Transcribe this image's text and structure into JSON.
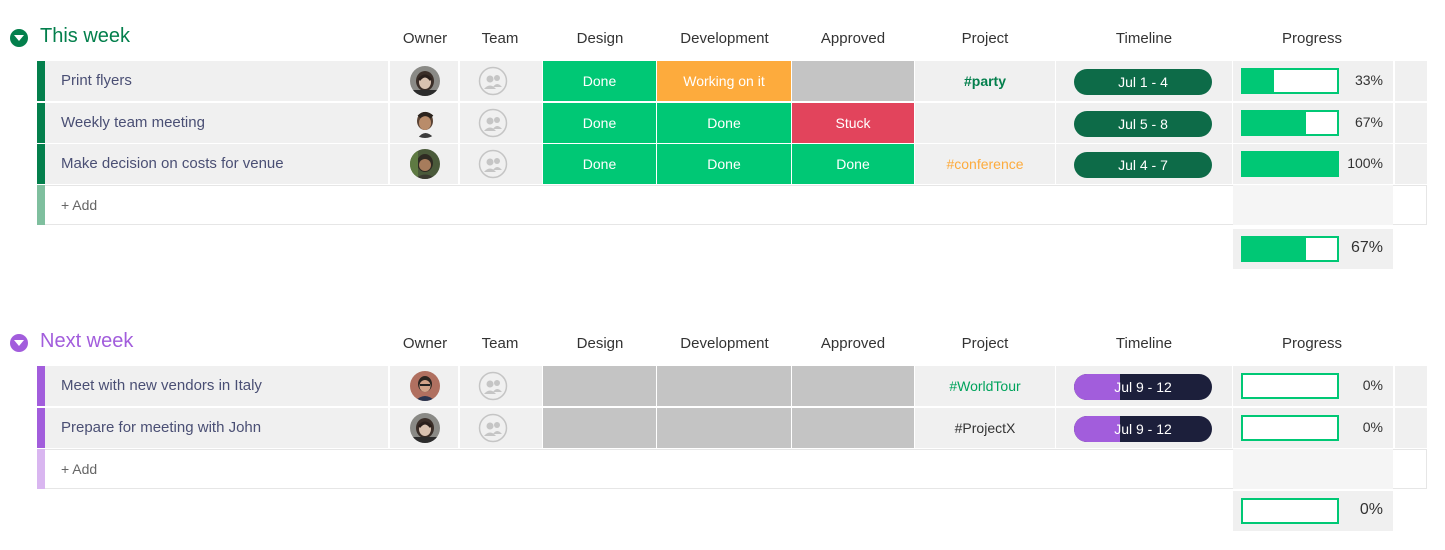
{
  "columns": {
    "owner": "Owner",
    "team": "Team",
    "design": "Design",
    "development": "Development",
    "approved": "Approved",
    "project": "Project",
    "timeline": "Timeline",
    "progress": "Progress"
  },
  "colors": {
    "done": "#00c875",
    "working": "#fdab3d",
    "stuck": "#e2445c",
    "empty": "#c4c4c4",
    "this_week": "#037f4c",
    "next_week": "#a25ddc",
    "timeline_dark": "#0d6b48",
    "timeline_navy": "#1c1f3b"
  },
  "groups": [
    {
      "title": "This week",
      "add_label": "+ Add",
      "summary_progress": "67%",
      "summary_fraction": 0.67,
      "rows": [
        {
          "name": "Print flyers",
          "design": "Done",
          "development": "Working on it",
          "approved": "",
          "project": "#party",
          "timeline": "Jul 1 - 4",
          "progress": "33%",
          "progress_fraction": 0.33
        },
        {
          "name": "Weekly team meeting",
          "design": "Done",
          "development": "Done",
          "approved": "Stuck",
          "project": "",
          "timeline": "Jul 5 - 8",
          "progress": "67%",
          "progress_fraction": 0.67
        },
        {
          "name": "Make decision on costs for venue",
          "design": "Done",
          "development": "Done",
          "approved": "Done",
          "project": "#conference",
          "timeline": "Jul 4 - 7",
          "progress": "100%",
          "progress_fraction": 1.0
        }
      ]
    },
    {
      "title": "Next week",
      "add_label": "+ Add",
      "summary_progress": "0%",
      "summary_fraction": 0,
      "rows": [
        {
          "name": "Meet with new vendors in Italy",
          "design": "",
          "development": "",
          "approved": "",
          "project": "#WorldTour",
          "timeline": "Jul 9 - 12",
          "progress": "0%",
          "progress_fraction": 0
        },
        {
          "name": "Prepare for meeting with John",
          "design": "",
          "development": "",
          "approved": "",
          "project": "#ProjectX",
          "timeline": "Jul 9 - 12",
          "progress": "0%",
          "progress_fraction": 0
        }
      ]
    }
  ]
}
